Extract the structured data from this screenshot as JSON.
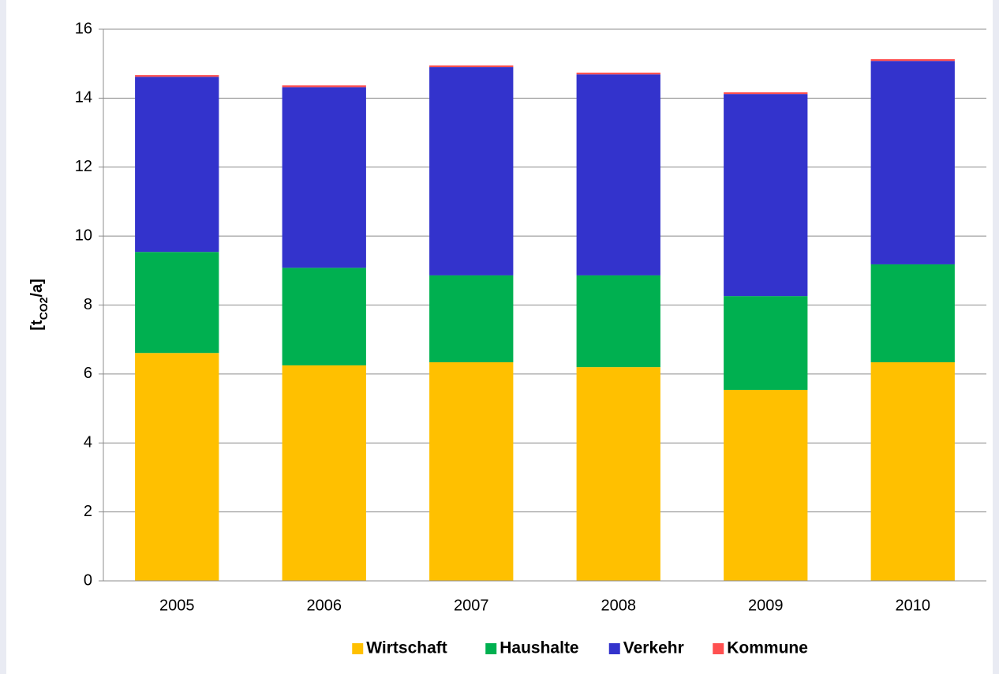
{
  "chart_data": {
    "type": "stacked_bar",
    "ylabel_parts": [
      "[t",
      "CO2",
      "/a]"
    ],
    "categories": [
      "2005",
      "2006",
      "2007",
      "2008",
      "2009",
      "2010"
    ],
    "series": [
      {
        "name": "Wirtschaft",
        "color": "#ffc000",
        "values": [
          6.61,
          6.25,
          6.34,
          6.2,
          5.54,
          6.34
        ]
      },
      {
        "name": "Haushalte",
        "color": "#00b050",
        "values": [
          2.93,
          2.83,
          2.52,
          2.66,
          2.72,
          2.84
        ]
      },
      {
        "name": "Verkehr",
        "color": "#3333cc",
        "values": [
          5.08,
          5.24,
          6.04,
          5.83,
          5.86,
          5.9
        ]
      },
      {
        "name": "Kommune",
        "color": "#ff5050",
        "values": [
          0.05,
          0.05,
          0.05,
          0.05,
          0.05,
          0.05
        ]
      }
    ],
    "ylim": [
      0,
      16
    ],
    "yticks": [
      0,
      2,
      4,
      6,
      8,
      10,
      12,
      14,
      16
    ],
    "grid": true,
    "legend": "bottom"
  }
}
